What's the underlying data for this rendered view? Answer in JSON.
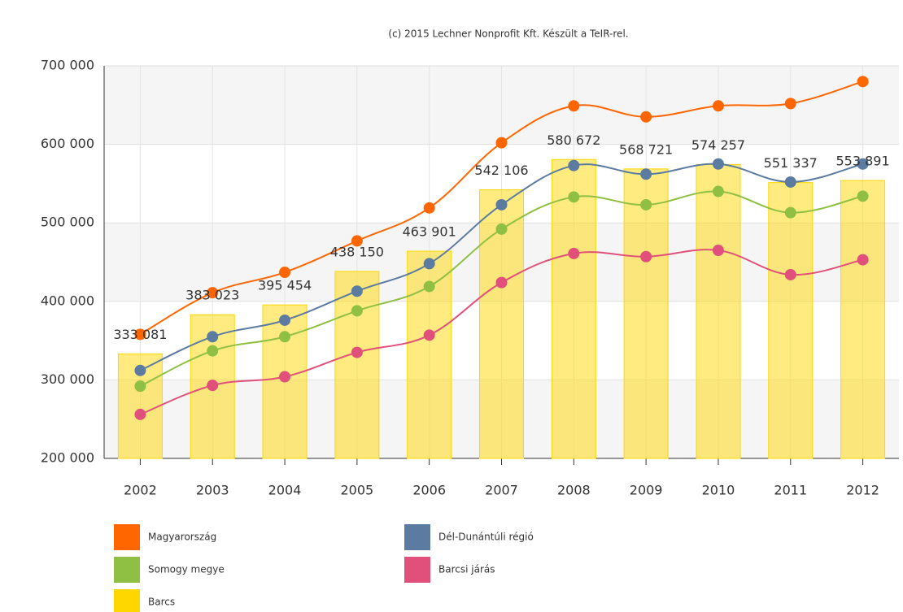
{
  "chart_data": {
    "type": "combo",
    "credits": "(c) 2015 Lechner Nonprofit Kft. Készült a TeIR-rel.",
    "categories": [
      "2002",
      "2003",
      "2004",
      "2005",
      "2006",
      "2007",
      "2008",
      "2009",
      "2010",
      "2011",
      "2012"
    ],
    "series": [
      {
        "name": "Magyarország",
        "type": "line",
        "color": "#ff6600",
        "values": [
          358000,
          411000,
          437000,
          477000,
          519000,
          602000,
          649000,
          635000,
          649000,
          652000,
          680000
        ]
      },
      {
        "name": "Dél-Dunántúli régió",
        "type": "line",
        "color": "#5c7ba0",
        "values": [
          312000,
          355000,
          376000,
          413000,
          448000,
          523000,
          573000,
          562000,
          575000,
          552000,
          575000
        ]
      },
      {
        "name": "Somogy megye",
        "type": "line",
        "color": "#8fc043",
        "values": [
          292000,
          337000,
          355000,
          388000,
          419000,
          492000,
          533000,
          523000,
          540000,
          513000,
          534000
        ]
      },
      {
        "name": "Barcsi járás",
        "type": "line",
        "color": "#e0507a",
        "values": [
          256000,
          293000,
          304000,
          335000,
          357000,
          424000,
          461000,
          457000,
          465000,
          434000,
          453000
        ]
      },
      {
        "name": "Barcs",
        "type": "bar",
        "color": "#ffd700",
        "values": [
          333081,
          383023,
          395454,
          438150,
          463901,
          542106,
          580672,
          568721,
          574257,
          551337,
          553891
        ],
        "value_labels": [
          "333 081",
          "383 023",
          "395 454",
          "438 150",
          "463 901",
          "542 106",
          "580 672",
          "568 721",
          "574 257",
          "551 337",
          "553 891"
        ]
      }
    ],
    "ylim": [
      200000,
      700000
    ],
    "yticks": [
      {
        "value": 200000,
        "label": "200 000"
      },
      {
        "value": 300000,
        "label": "300 000"
      },
      {
        "value": 400000,
        "label": "400 000"
      },
      {
        "value": 500000,
        "label": "500 000"
      },
      {
        "value": 600000,
        "label": "600 000"
      },
      {
        "value": 700000,
        "label": "700 000"
      }
    ],
    "grid": true
  }
}
